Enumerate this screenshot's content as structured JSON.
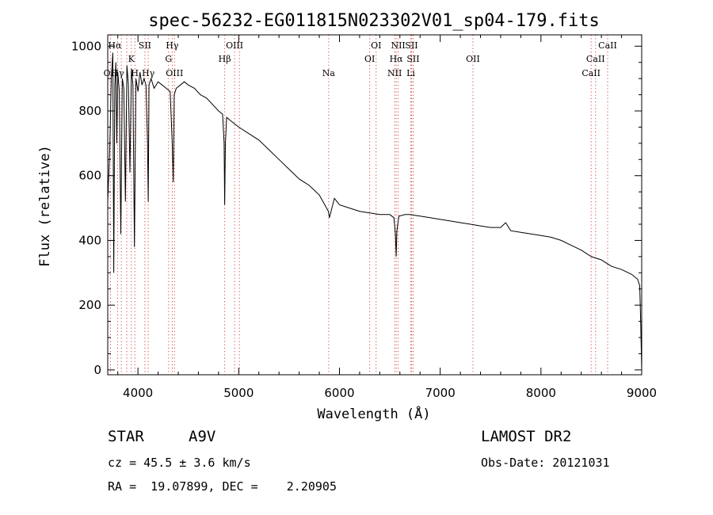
{
  "chart_data": {
    "type": "line",
    "title": "spec-56232-EG011815N023302V01_sp04-179.fits",
    "xlabel": "Wavelength (Å)",
    "ylabel": "Flux (relative)",
    "xlim": [
      3700,
      9000
    ],
    "ylim": [
      -15,
      1035
    ],
    "x_ticks": [
      4000,
      5000,
      6000,
      7000,
      8000,
      9000
    ],
    "y_ticks": [
      0,
      200,
      400,
      600,
      800,
      1000
    ],
    "grid": false,
    "series": [
      {
        "x": [
          3700,
          3720,
          3735,
          3750,
          3760,
          3770,
          3780,
          3790,
          3800,
          3815,
          3830,
          3845,
          3860,
          3875,
          3890,
          3905,
          3920,
          3935,
          3950,
          3965,
          3980,
          4000,
          4020,
          4040,
          4060,
          4080,
          4095,
          4102,
          4110,
          4130,
          4160,
          4200,
          4240,
          4280,
          4320,
          4340,
          4350,
          4360,
          4380,
          4420,
          4460,
          4500,
          4560,
          4620,
          4680,
          4740,
          4800,
          4840,
          4855,
          4861,
          4868,
          4880,
          4920,
          4960,
          5000,
          5100,
          5200,
          5300,
          5400,
          5500,
          5600,
          5700,
          5800,
          5890,
          5900,
          5950,
          6000,
          6100,
          6200,
          6300,
          6400,
          6500,
          6540,
          6555,
          6563,
          6570,
          6590,
          6650,
          6700,
          6800,
          6900,
          7000,
          7100,
          7200,
          7300,
          7400,
          7500,
          7600,
          7650,
          7700,
          7800,
          7900,
          8000,
          8100,
          8200,
          8300,
          8400,
          8500,
          8600,
          8700,
          8800,
          8900,
          8960,
          8980,
          8990,
          9000
        ],
        "y": [
          520,
          680,
          900,
          980,
          300,
          880,
          950,
          700,
          920,
          860,
          420,
          900,
          870,
          520,
          940,
          880,
          610,
          930,
          880,
          380,
          900,
          860,
          920,
          880,
          900,
          880,
          700,
          520,
          880,
          900,
          870,
          890,
          880,
          870,
          860,
          700,
          580,
          850,
          870,
          880,
          890,
          880,
          870,
          850,
          840,
          820,
          800,
          790,
          700,
          510,
          700,
          780,
          770,
          760,
          750,
          730,
          710,
          680,
          650,
          620,
          590,
          570,
          540,
          490,
          470,
          530,
          510,
          500,
          490,
          485,
          480,
          480,
          470,
          420,
          350,
          430,
          475,
          480,
          480,
          475,
          470,
          465,
          460,
          455,
          450,
          445,
          440,
          440,
          455,
          430,
          425,
          420,
          415,
          410,
          400,
          385,
          370,
          350,
          340,
          320,
          310,
          295,
          280,
          260,
          150,
          0
        ]
      }
    ],
    "line_markers": [
      {
        "label": "Hα",
        "wave": 3770,
        "row": 0
      },
      {
        "label": "OII",
        "wave": 3727,
        "row": 2
      },
      {
        "label": "Hγ",
        "wave": 3798,
        "row": 2
      },
      {
        "label": "K",
        "wave": 3934,
        "row": 1
      },
      {
        "label": "SII",
        "wave": 4069,
        "row": 0
      },
      {
        "label": "H",
        "wave": 3969,
        "row": 2
      },
      {
        "label": "Hγ",
        "wave": 4102,
        "row": 2
      },
      {
        "label": "Hγ",
        "wave": 4340,
        "row": 0
      },
      {
        "label": "G",
        "wave": 4304,
        "row": 1
      },
      {
        "label": "OIII",
        "wave": 4363,
        "row": 2
      },
      {
        "label": "OIII",
        "wave": 4959,
        "row": 0
      },
      {
        "label": "Hβ",
        "wave": 4861,
        "row": 1
      },
      {
        "label": "Na",
        "wave": 5893,
        "row": 2
      },
      {
        "label": "OI",
        "wave": 6364,
        "row": 0
      },
      {
        "label": "OI",
        "wave": 6300,
        "row": 1
      },
      {
        "label": "NII",
        "wave": 6583,
        "row": 0
      },
      {
        "label": "SII",
        "wave": 6716,
        "row": 0
      },
      {
        "label": "Hα",
        "wave": 6563,
        "row": 1
      },
      {
        "label": "SII",
        "wave": 6731,
        "row": 1
      },
      {
        "label": "NII",
        "wave": 6548,
        "row": 2
      },
      {
        "label": "Li",
        "wave": 6708,
        "row": 2
      },
      {
        "label": "OII",
        "wave": 7325,
        "row": 1
      },
      {
        "label": "CaII",
        "wave": 8662,
        "row": 0
      },
      {
        "label": "CaII",
        "wave": 8542,
        "row": 1
      },
      {
        "label": "CaII",
        "wave": 8498,
        "row": 2
      }
    ],
    "marker_lines": [
      3727,
      3798,
      3835,
      3889,
      3934,
      3969,
      4069,
      4102,
      4304,
      4340,
      4363,
      4861,
      4959,
      5007,
      5893,
      6300,
      6364,
      6548,
      6563,
      6583,
      6708,
      6716,
      6731,
      7325,
      8498,
      8542,
      8662
    ]
  },
  "info": {
    "object_class": "STAR",
    "subclass": "A9V",
    "survey": "LAMOST DR2",
    "cz": "cz = 45.5 ± 3.6 km/s",
    "obs_date": "Obs-Date: 20121031",
    "coords": "RA =  19.07899, DEC =    2.20905"
  },
  "colors": {
    "spectrum": "#000000",
    "marker": "#d94040",
    "axes": "#000000"
  }
}
